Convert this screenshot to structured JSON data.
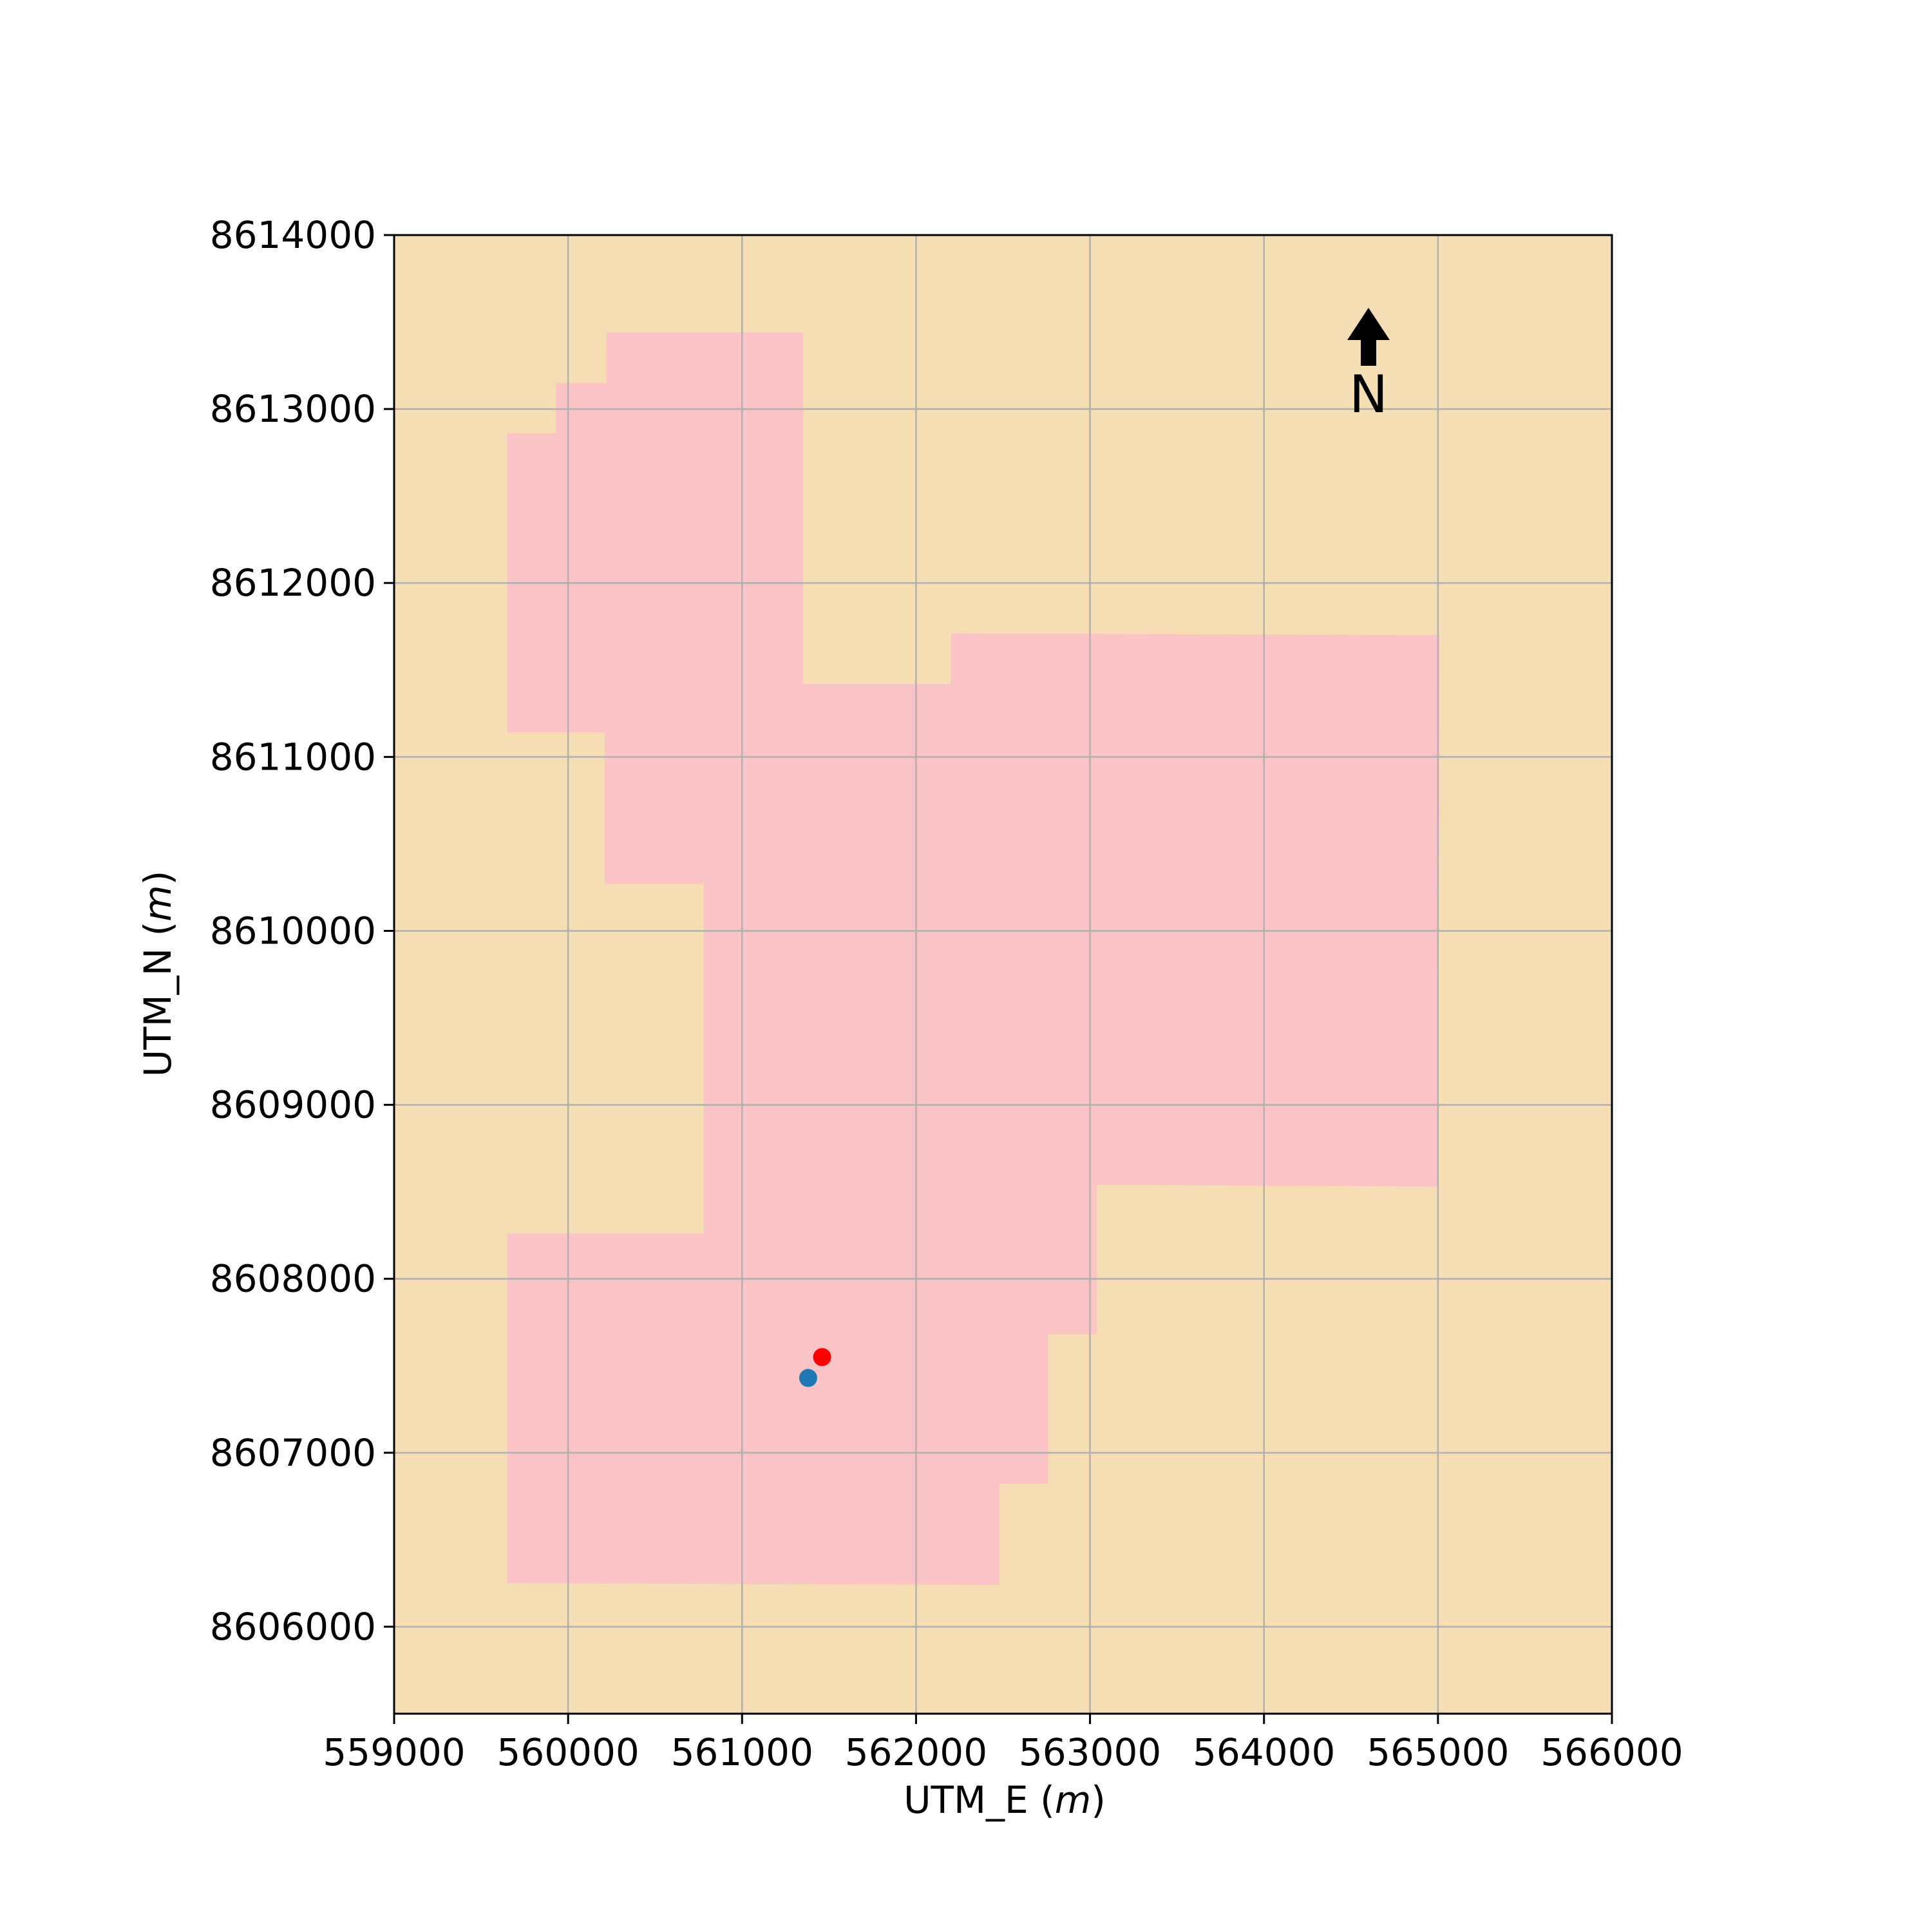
{
  "chart_data": {
    "type": "map",
    "xlabel": {
      "text": "UTM_E ",
      "unit": "m"
    },
    "ylabel": {
      "text": "UTM_N ",
      "unit": "m"
    },
    "xlim": [
      559000,
      566000
    ],
    "ylim": [
      8605500,
      8614000
    ],
    "xticks": [
      559000,
      560000,
      561000,
      562000,
      563000,
      564000,
      565000,
      566000
    ],
    "yticks": [
      8606000,
      8607000,
      8608000,
      8609000,
      8610000,
      8611000,
      8612000,
      8613000,
      8614000
    ],
    "grid": true,
    "background_color": "#f5deb3",
    "region_color": "#fac4c6",
    "grid_color": "#b0b0b0",
    "region_polygon": [
      [
        559650,
        8606250
      ],
      [
        562480,
        8606240
      ],
      [
        562480,
        8606820
      ],
      [
        562760,
        8606820
      ],
      [
        562760,
        8607680
      ],
      [
        563040,
        8607680
      ],
      [
        563040,
        8608540
      ],
      [
        565000,
        8608530
      ],
      [
        565010,
        8611700
      ],
      [
        562200,
        8611710
      ],
      [
        562200,
        8611420
      ],
      [
        561350,
        8611420
      ],
      [
        561350,
        8613440
      ],
      [
        560220,
        8613440
      ],
      [
        560220,
        8613150
      ],
      [
        559930,
        8613150
      ],
      [
        559930,
        8612860
      ],
      [
        559650,
        8612860
      ],
      [
        559650,
        8611140
      ],
      [
        560210,
        8611140
      ],
      [
        560210,
        8610270
      ],
      [
        560780,
        8610270
      ],
      [
        560780,
        8608260
      ],
      [
        559650,
        8608260
      ]
    ],
    "points": [
      {
        "x": 561380,
        "y": 8607430,
        "color": "#1f77b4"
      },
      {
        "x": 561460,
        "y": 8607550,
        "color": "#ff0000"
      }
    ],
    "north_arrow": {
      "label": "N",
      "placement": "top-right"
    }
  }
}
